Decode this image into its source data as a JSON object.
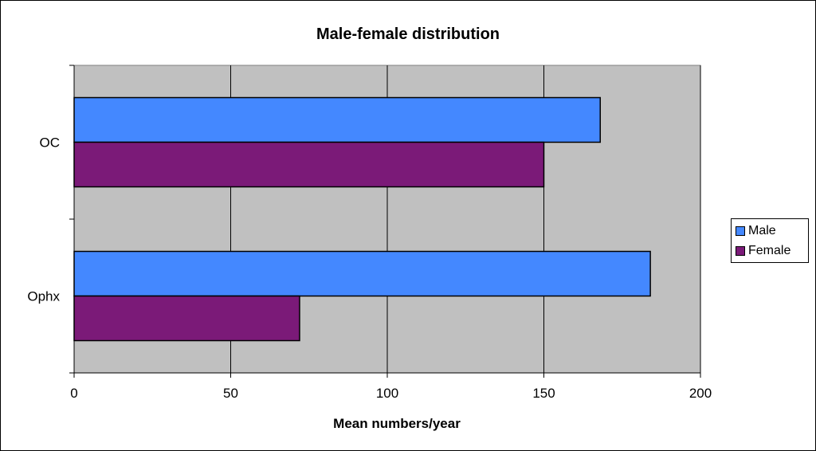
{
  "chart_data": {
    "type": "bar",
    "orientation": "horizontal",
    "title": "Male-female distribution",
    "xlabel": "Mean numbers/year",
    "ylabel": "",
    "categories": [
      "OC",
      "Ophx"
    ],
    "series": [
      {
        "name": "Male",
        "values": [
          168,
          184
        ],
        "color": "#4488ff"
      },
      {
        "name": "Female",
        "values": [
          150,
          72
        ],
        "color": "#7b1a78"
      }
    ],
    "xlim": [
      0,
      200
    ],
    "xticks": [
      0,
      50,
      100,
      150,
      200
    ],
    "grid": "vertical",
    "plot_background": "#c0c0c0",
    "legend_position": "right"
  }
}
